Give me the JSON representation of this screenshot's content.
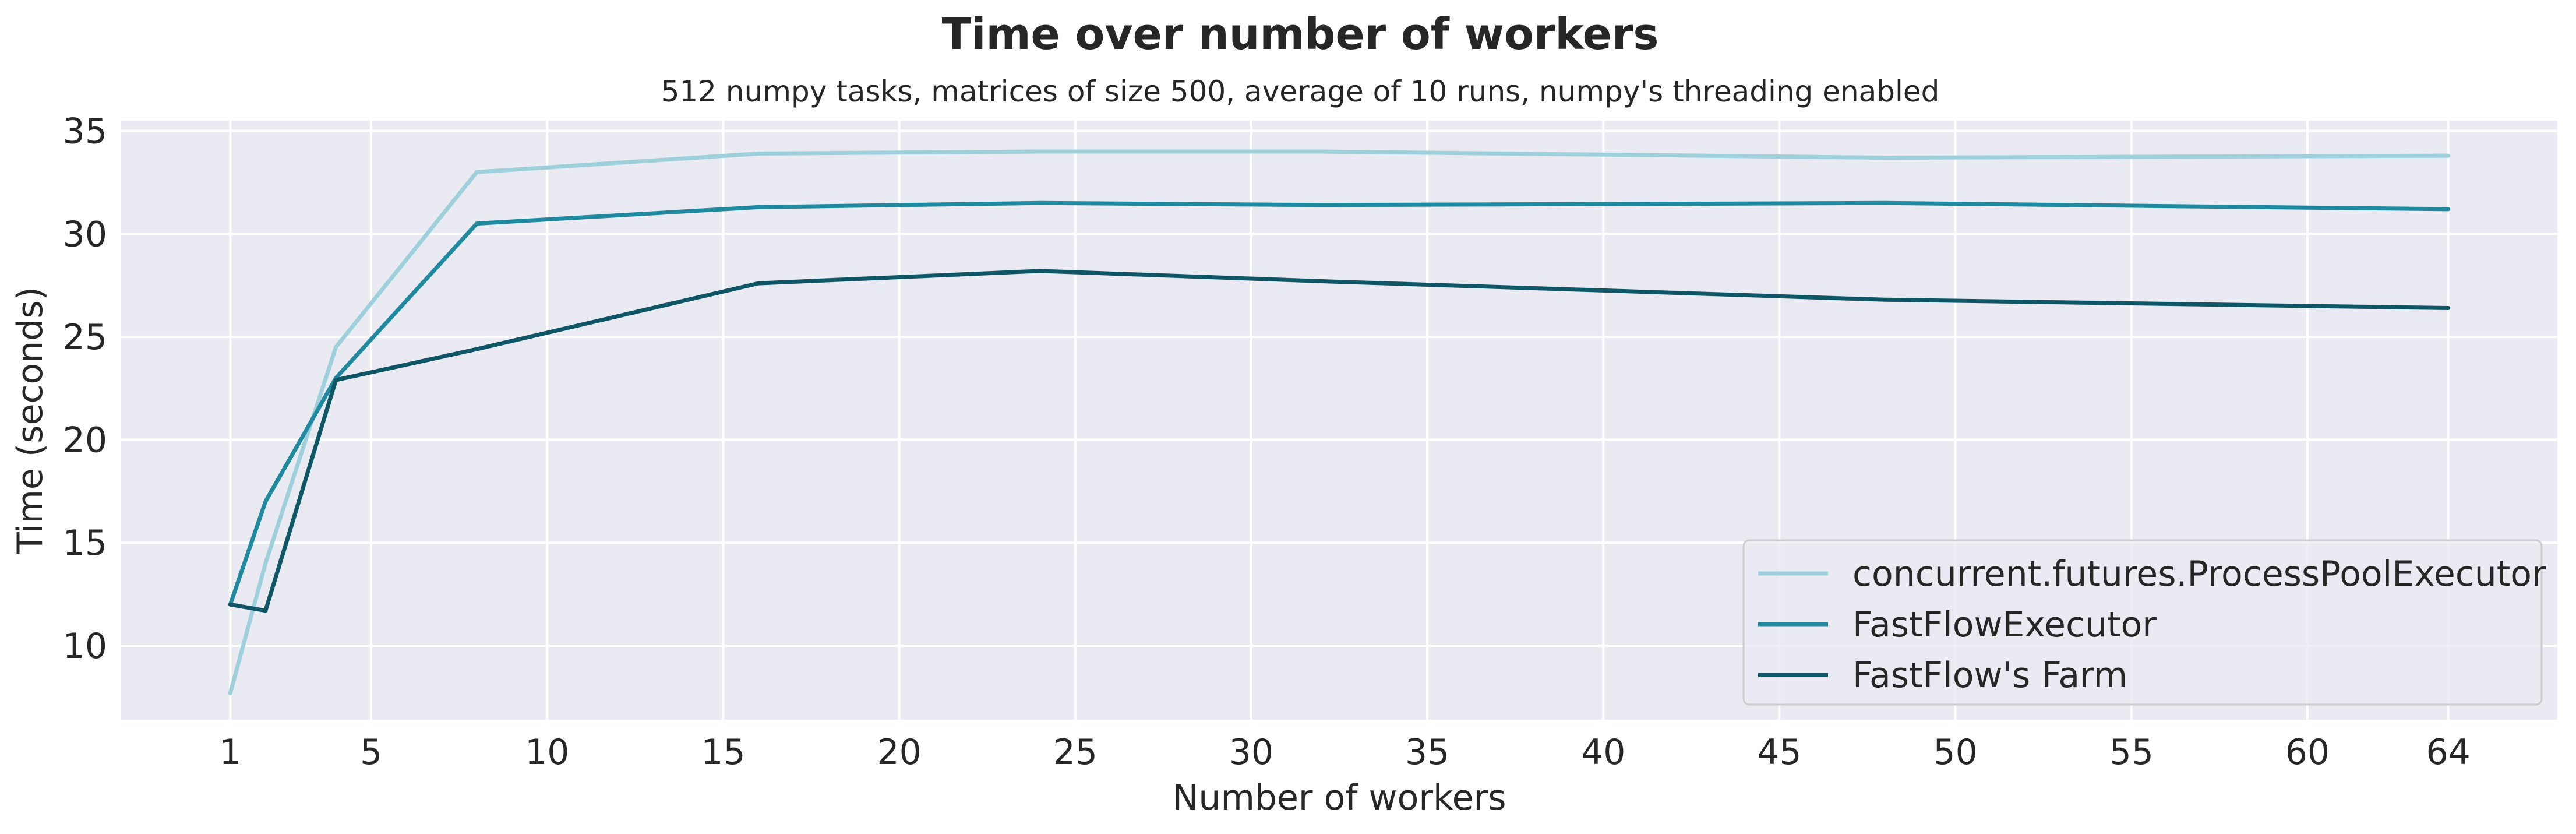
{
  "chart_data": {
    "type": "line",
    "title": "Time over number of workers",
    "subtitle": "512 numpy tasks, matrices of size 500, average of 10 runs, numpy's threading enabled",
    "xlabel": "Number of workers",
    "ylabel": "Time (seconds)",
    "x": [
      1,
      2,
      4,
      8,
      16,
      24,
      32,
      48,
      64
    ],
    "xticks": [
      1,
      5,
      10,
      15,
      20,
      25,
      30,
      35,
      40,
      45,
      50,
      55,
      60,
      64
    ],
    "yticks": [
      10,
      15,
      20,
      25,
      30,
      35
    ],
    "xlim": [
      -2.1,
      67.1
    ],
    "ylim": [
      6.4,
      35.5
    ],
    "grid": true,
    "legend_position": "lower-right",
    "series": [
      {
        "name": "concurrent.futures.ProcessPoolExecutor",
        "color": "#9dd0da",
        "values": [
          7.7,
          14.0,
          24.5,
          33.0,
          33.9,
          34.0,
          34.0,
          33.7,
          33.8
        ]
      },
      {
        "name": "FastFlowExecutor",
        "color": "#1f89a0",
        "values": [
          12.0,
          17.0,
          23.0,
          30.5,
          31.3,
          31.5,
          31.4,
          31.5,
          31.2
        ]
      },
      {
        "name": "FastFlow's Farm",
        "color": "#0e5566",
        "values": [
          12.0,
          11.7,
          22.9,
          24.4,
          27.6,
          28.2,
          27.7,
          26.8,
          26.4
        ]
      }
    ]
  }
}
